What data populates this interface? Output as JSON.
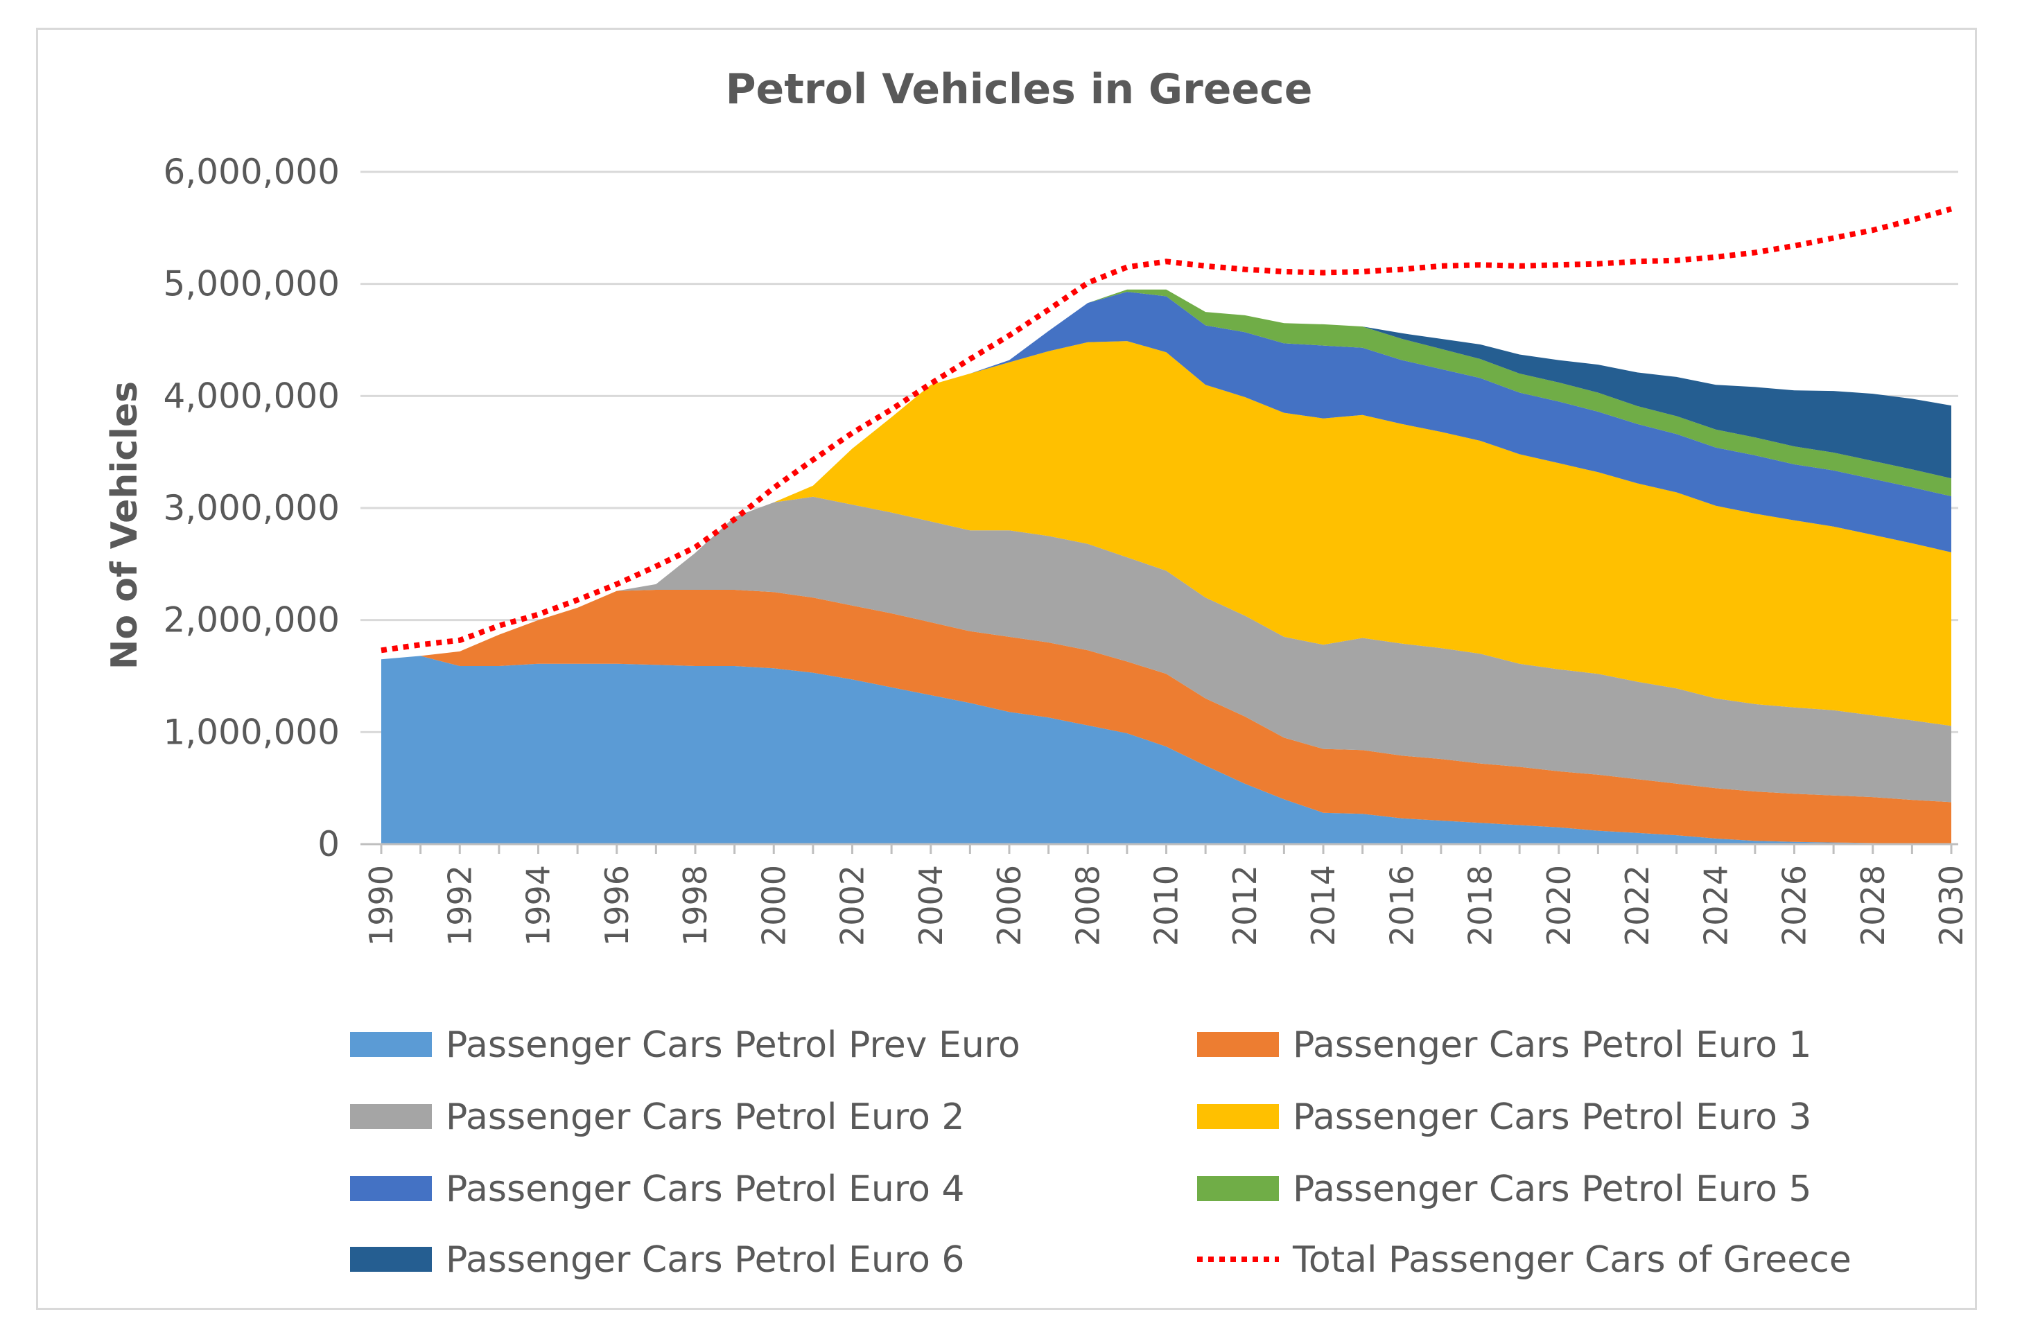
{
  "chart_data": {
    "type": "area",
    "stacked": true,
    "title": "Petrol Vehicles in Greece",
    "xlabel": "",
    "ylabel": "No of Vehicles",
    "ylim": [
      0,
      6000000
    ],
    "yticks": [
      0,
      1000000,
      2000000,
      3000000,
      4000000,
      5000000,
      6000000
    ],
    "ytick_labels": [
      "0",
      "1,000,000",
      "2,000,000",
      "3,000,000",
      "4,000,000",
      "5,000,000",
      "6,000,000"
    ],
    "xtick_labels": [
      "1990",
      "1992",
      "1994",
      "1996",
      "1998",
      "2000",
      "2002",
      "2004",
      "2006",
      "2008",
      "2010",
      "2012",
      "2014",
      "2016",
      "2018",
      "2020",
      "2022",
      "2024",
      "2026",
      "2028",
      "2030"
    ],
    "x": [
      1990,
      1991,
      1992,
      1993,
      1994,
      1995,
      1996,
      1997,
      1998,
      1999,
      2000,
      2001,
      2002,
      2003,
      2004,
      2005,
      2006,
      2007,
      2008,
      2009,
      2010,
      2011,
      2012,
      2013,
      2014,
      2015,
      2016,
      2017,
      2018,
      2019,
      2020,
      2021,
      2022,
      2023,
      2024,
      2025,
      2026,
      2027,
      2028,
      2029,
      2030
    ],
    "grid": true,
    "legend_position": "bottom",
    "series": [
      {
        "name": "Passenger Cars Petrol Prev Euro",
        "color": "#5b9bd5",
        "values": [
          1650000,
          1680000,
          1590000,
          1590000,
          1610000,
          1610000,
          1610000,
          1600000,
          1590000,
          1590000,
          1570000,
          1530000,
          1470000,
          1400000,
          1330000,
          1260000,
          1180000,
          1130000,
          1060000,
          990000,
          870000,
          700000,
          540000,
          400000,
          280000,
          270000,
          230000,
          210000,
          190000,
          170000,
          150000,
          120000,
          100000,
          80000,
          50000,
          30000,
          20000,
          15000,
          10000,
          5000,
          5000
        ]
      },
      {
        "name": "Passenger Cars Petrol Euro 1",
        "color": "#ed7d31",
        "values": [
          0,
          0,
          130000,
          280000,
          390000,
          500000,
          650000,
          670000,
          680000,
          680000,
          680000,
          670000,
          660000,
          660000,
          650000,
          640000,
          670000,
          670000,
          670000,
          640000,
          650000,
          600000,
          600000,
          550000,
          570000,
          570000,
          560000,
          550000,
          530000,
          520000,
          500000,
          500000,
          480000,
          460000,
          450000,
          440000,
          430000,
          420000,
          410000,
          390000,
          370000
        ]
      },
      {
        "name": "Passenger Cars Petrol Euro 2",
        "color": "#a5a5a5",
        "values": [
          0,
          0,
          0,
          0,
          0,
          0,
          0,
          50000,
          330000,
          650000,
          800000,
          900000,
          900000,
          900000,
          900000,
          900000,
          950000,
          950000,
          950000,
          930000,
          920000,
          900000,
          900000,
          900000,
          930000,
          1000000,
          1000000,
          990000,
          980000,
          920000,
          910000,
          900000,
          870000,
          850000,
          800000,
          780000,
          770000,
          760000,
          730000,
          710000,
          680000
        ]
      },
      {
        "name": "Passenger Cars Petrol Euro 3",
        "color": "#ffc000",
        "values": [
          0,
          0,
          0,
          0,
          0,
          0,
          0,
          0,
          0,
          0,
          0,
          100000,
          500000,
          850000,
          1220000,
          1400000,
          1500000,
          1650000,
          1800000,
          1930000,
          1950000,
          1900000,
          1950000,
          2000000,
          2020000,
          1990000,
          1960000,
          1930000,
          1900000,
          1870000,
          1840000,
          1800000,
          1770000,
          1750000,
          1720000,
          1700000,
          1670000,
          1640000,
          1610000,
          1580000,
          1550000
        ]
      },
      {
        "name": "Passenger Cars Petrol Euro 4",
        "color": "#4472c4",
        "values": [
          0,
          0,
          0,
          0,
          0,
          0,
          0,
          0,
          0,
          0,
          0,
          0,
          0,
          0,
          0,
          0,
          20000,
          180000,
          350000,
          440000,
          500000,
          530000,
          580000,
          620000,
          650000,
          600000,
          570000,
          560000,
          560000,
          550000,
          550000,
          540000,
          530000,
          520000,
          520000,
          520000,
          500000,
          500000,
          500000,
          500000,
          500000
        ]
      },
      {
        "name": "Passenger Cars Petrol Euro 5",
        "color": "#70ad47",
        "values": [
          0,
          0,
          0,
          0,
          0,
          0,
          0,
          0,
          0,
          0,
          0,
          0,
          0,
          0,
          0,
          0,
          0,
          0,
          0,
          20000,
          60000,
          120000,
          150000,
          180000,
          190000,
          190000,
          190000,
          180000,
          170000,
          170000,
          170000,
          170000,
          160000,
          160000,
          160000,
          160000,
          160000,
          160000,
          160000,
          160000,
          160000
        ]
      },
      {
        "name": "Passenger Cars Petrol Euro 6",
        "color": "#255e91",
        "values": [
          0,
          0,
          0,
          0,
          0,
          0,
          0,
          0,
          0,
          0,
          0,
          0,
          0,
          0,
          0,
          0,
          0,
          0,
          0,
          0,
          0,
          0,
          0,
          0,
          0,
          0,
          50000,
          90000,
          130000,
          170000,
          200000,
          250000,
          300000,
          350000,
          400000,
          450000,
          500000,
          550000,
          600000,
          630000,
          650000
        ]
      }
    ],
    "total_line": {
      "name": "Total Passenger Cars of Greece",
      "color": "#ff0000",
      "style": "dotted",
      "values": [
        1730000,
        1780000,
        1820000,
        1950000,
        2050000,
        2180000,
        2320000,
        2480000,
        2650000,
        2900000,
        3180000,
        3430000,
        3670000,
        3880000,
        4110000,
        4330000,
        4540000,
        4770000,
        5010000,
        5150000,
        5200000,
        5160000,
        5130000,
        5110000,
        5100000,
        5110000,
        5130000,
        5160000,
        5170000,
        5160000,
        5170000,
        5180000,
        5200000,
        5210000,
        5240000,
        5280000,
        5340000,
        5410000,
        5480000,
        5570000,
        5670000
      ]
    }
  }
}
